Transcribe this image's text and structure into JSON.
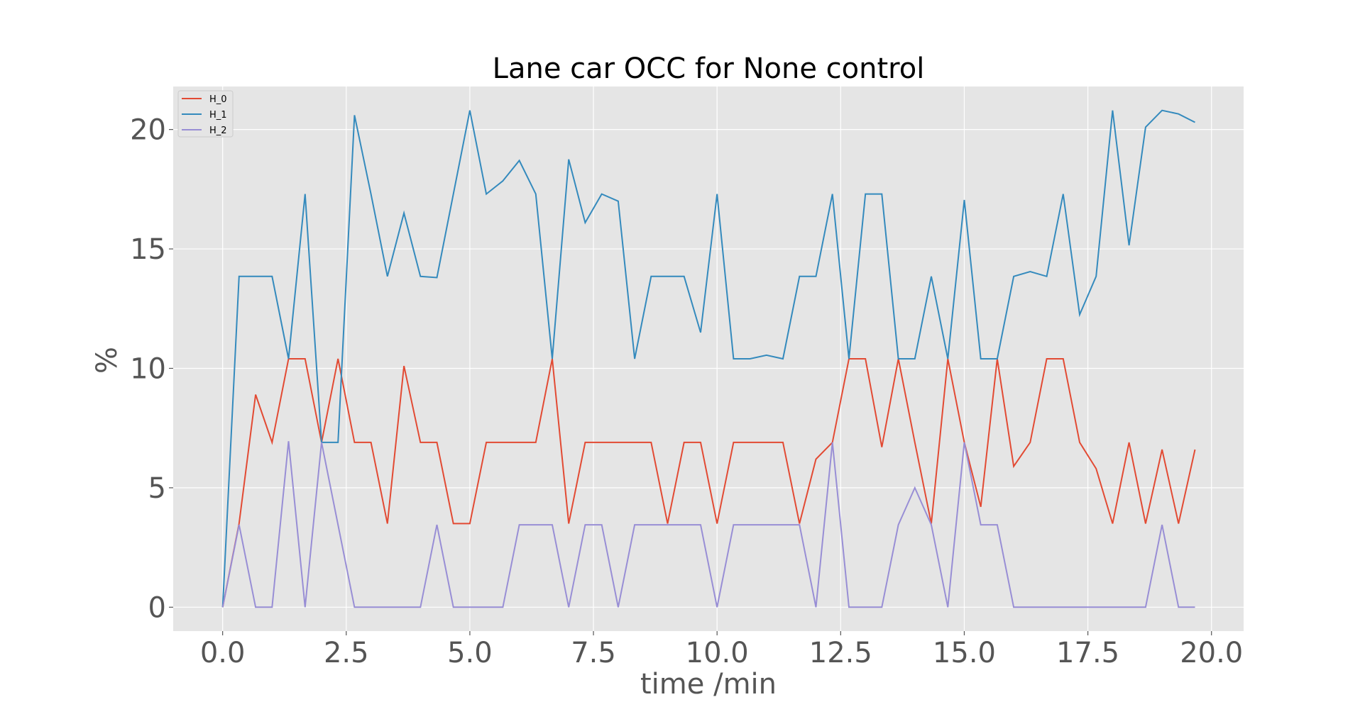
{
  "chart_data": {
    "type": "line",
    "title": "Lane car OCC for None control",
    "xlabel": "time /min",
    "ylabel": "%",
    "xlim": [
      -1.0,
      20.65
    ],
    "ylim": [
      -1.0,
      21.8
    ],
    "xticks": [
      "0.0",
      "2.5",
      "5.0",
      "7.5",
      "10.0",
      "12.5",
      "15.0",
      "17.5",
      "20.0"
    ],
    "yticks": [
      "0",
      "5",
      "10",
      "15",
      "20"
    ],
    "grid": true,
    "legend_position": "top-left",
    "x": [
      0.0,
      0.333,
      0.667,
      1.0,
      1.333,
      1.667,
      2.0,
      2.333,
      2.667,
      3.0,
      3.333,
      3.667,
      4.0,
      4.333,
      4.667,
      5.0,
      5.333,
      5.667,
      6.0,
      6.333,
      6.667,
      7.0,
      7.333,
      7.667,
      8.0,
      8.333,
      8.667,
      9.0,
      9.333,
      9.667,
      10.0,
      10.333,
      10.667,
      11.0,
      11.333,
      11.667,
      12.0,
      12.333,
      12.667,
      13.0,
      13.333,
      13.667,
      14.0,
      14.333,
      14.667,
      15.0,
      15.333,
      15.667,
      16.0,
      16.333,
      16.667,
      17.0,
      17.333,
      17.667,
      18.0,
      18.333,
      18.667,
      19.0,
      19.333,
      19.667
    ],
    "series": [
      {
        "name": "H_0",
        "color": "#E24A33",
        "values": [
          0,
          3.5,
          8.9,
          6.9,
          10.4,
          10.4,
          6.9,
          10.4,
          6.9,
          6.9,
          3.5,
          10.1,
          6.9,
          6.9,
          3.5,
          3.5,
          6.9,
          6.9,
          6.9,
          6.9,
          10.4,
          3.5,
          6.9,
          6.9,
          6.9,
          6.9,
          6.9,
          3.5,
          6.9,
          6.9,
          3.5,
          6.9,
          6.9,
          6.9,
          6.9,
          3.5,
          6.2,
          6.9,
          10.4,
          10.4,
          6.7,
          10.4,
          6.9,
          3.5,
          10.4,
          6.9,
          4.2,
          10.4,
          5.9,
          6.9,
          10.4,
          10.4,
          6.9,
          5.8,
          3.5,
          6.9,
          3.5,
          6.6,
          3.5,
          6.6
        ]
      },
      {
        "name": "H_1",
        "color": "#348ABD",
        "values": [
          0,
          13.85,
          13.85,
          13.85,
          10.4,
          17.3,
          6.9,
          6.9,
          20.6,
          17.3,
          13.85,
          16.5,
          13.85,
          13.8,
          17.3,
          20.8,
          17.3,
          17.85,
          18.7,
          17.3,
          10.4,
          18.75,
          16.1,
          17.3,
          17.0,
          10.4,
          13.85,
          13.85,
          13.85,
          11.5,
          17.3,
          10.4,
          10.4,
          10.55,
          10.4,
          13.85,
          13.85,
          17.3,
          10.4,
          17.3,
          17.3,
          10.4,
          10.4,
          13.85,
          10.4,
          17.05,
          10.4,
          10.4,
          13.85,
          14.05,
          13.85,
          17.3,
          12.25,
          13.85,
          20.8,
          15.15,
          20.1,
          20.8,
          20.65,
          20.3
        ]
      },
      {
        "name": "H_2",
        "color": "#988ED5",
        "values": [
          0,
          3.45,
          0,
          0,
          6.95,
          0,
          6.9,
          3.45,
          0,
          0,
          0,
          0,
          0,
          3.45,
          0,
          0,
          0,
          0,
          3.45,
          3.45,
          3.45,
          0,
          3.45,
          3.45,
          0,
          3.45,
          3.45,
          3.45,
          3.45,
          3.45,
          0,
          3.45,
          3.45,
          3.45,
          3.45,
          3.45,
          0,
          6.9,
          0,
          0,
          0,
          3.45,
          5.0,
          3.45,
          0,
          6.9,
          3.45,
          3.45,
          0,
          0,
          0,
          0,
          0,
          0,
          0,
          0,
          0,
          3.45,
          0,
          0
        ]
      }
    ]
  }
}
